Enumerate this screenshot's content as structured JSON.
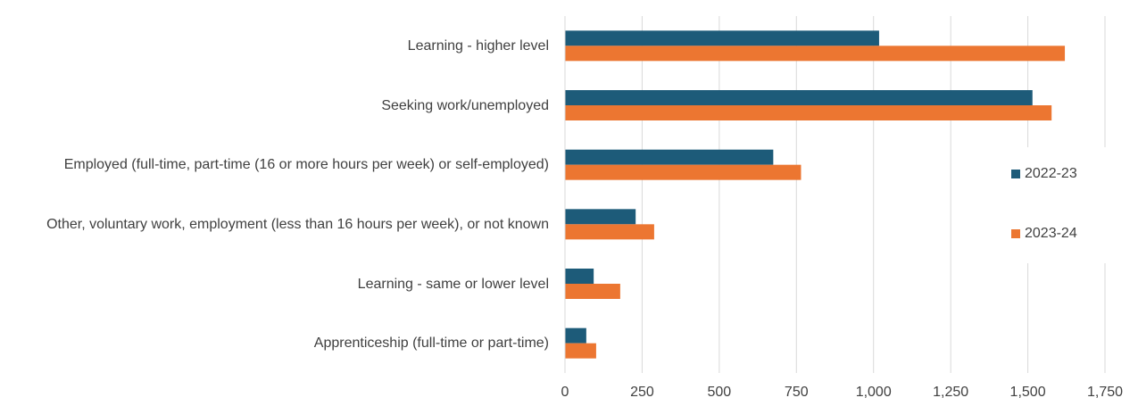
{
  "chart_data": {
    "type": "barh",
    "categories": [
      "Learning - higher level",
      "Seeking work/unemployed",
      "Employed (full-time, part-time (16 or more hours per week) or self-employed)",
      "Other, voluntary work, employment (less than 16 hours per week), or not known",
      "Learning - same or lower level",
      "Apprenticeship (full-time or part-time)"
    ],
    "series": [
      {
        "name": "2022-23",
        "color": "#1d5b79",
        "values": [
          1018,
          1515,
          675,
          229,
          93,
          69
        ]
      },
      {
        "name": "2023-24",
        "color": "#ec7631",
        "values": [
          1620,
          1577,
          765,
          289,
          179,
          101
        ]
      }
    ],
    "xlim": [
      0,
      1750
    ],
    "xticks": [
      0,
      250,
      500,
      750,
      {
        "value": 1000,
        "label": "1,000"
      },
      {
        "value": 1250,
        "label": "1,250"
      },
      {
        "value": 1500,
        "label": "1,500"
      },
      {
        "value": 1750,
        "label": "1,750"
      }
    ],
    "grid": true,
    "legend": "right"
  }
}
